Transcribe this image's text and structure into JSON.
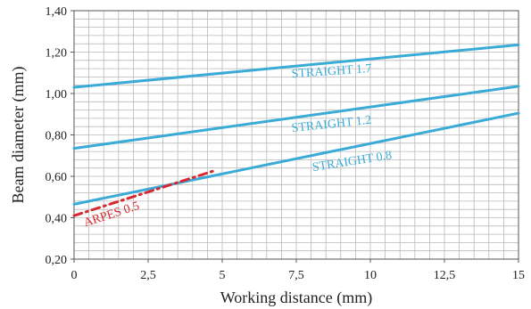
{
  "chart_data": {
    "type": "line",
    "xlabel": "Working distance (mm)",
    "ylabel": "Beam diameter (mm)",
    "xlim": [
      0,
      15
    ],
    "ylim": [
      0.2,
      1.4
    ],
    "x_ticks": [
      "0",
      "2,5",
      "5",
      "7,5",
      "10",
      "12,5",
      "15"
    ],
    "x_tick_values": [
      0,
      2.5,
      5,
      7.5,
      10,
      12.5,
      15
    ],
    "y_ticks": [
      "0,20",
      "0,40",
      "0,60",
      "0,80",
      "1,00",
      "1,20",
      "1,40"
    ],
    "y_tick_values": [
      0.2,
      0.4,
      0.6,
      0.8,
      1.0,
      1.2,
      1.4
    ],
    "grid": true,
    "series": [
      {
        "name": "STRAIGHT 1.7",
        "color": "#3aabd6",
        "style": "solid",
        "x": [
          0,
          15
        ],
        "y": [
          1.03,
          1.235
        ],
        "label_at": [
          8.7,
          1.09
        ],
        "label_angle": -4
      },
      {
        "name": "STRAIGHT 1.2",
        "color": "#3aabd6",
        "style": "solid",
        "x": [
          0,
          15
        ],
        "y": [
          0.735,
          1.035
        ],
        "label_at": [
          8.7,
          0.835
        ],
        "label_angle": -6
      },
      {
        "name": "STRAIGHT 0.8",
        "color": "#3aabd6",
        "style": "solid",
        "x": [
          0,
          15
        ],
        "y": [
          0.465,
          0.905
        ],
        "label_at": [
          9.4,
          0.655
        ],
        "label_angle": -9
      },
      {
        "name": "ARPES 0.5",
        "color": "#d7282f",
        "style": "dashed",
        "x": [
          0,
          4.8
        ],
        "y": [
          0.41,
          0.63
        ],
        "label_at": [
          1.3,
          0.4
        ],
        "label_angle": -18
      }
    ]
  }
}
